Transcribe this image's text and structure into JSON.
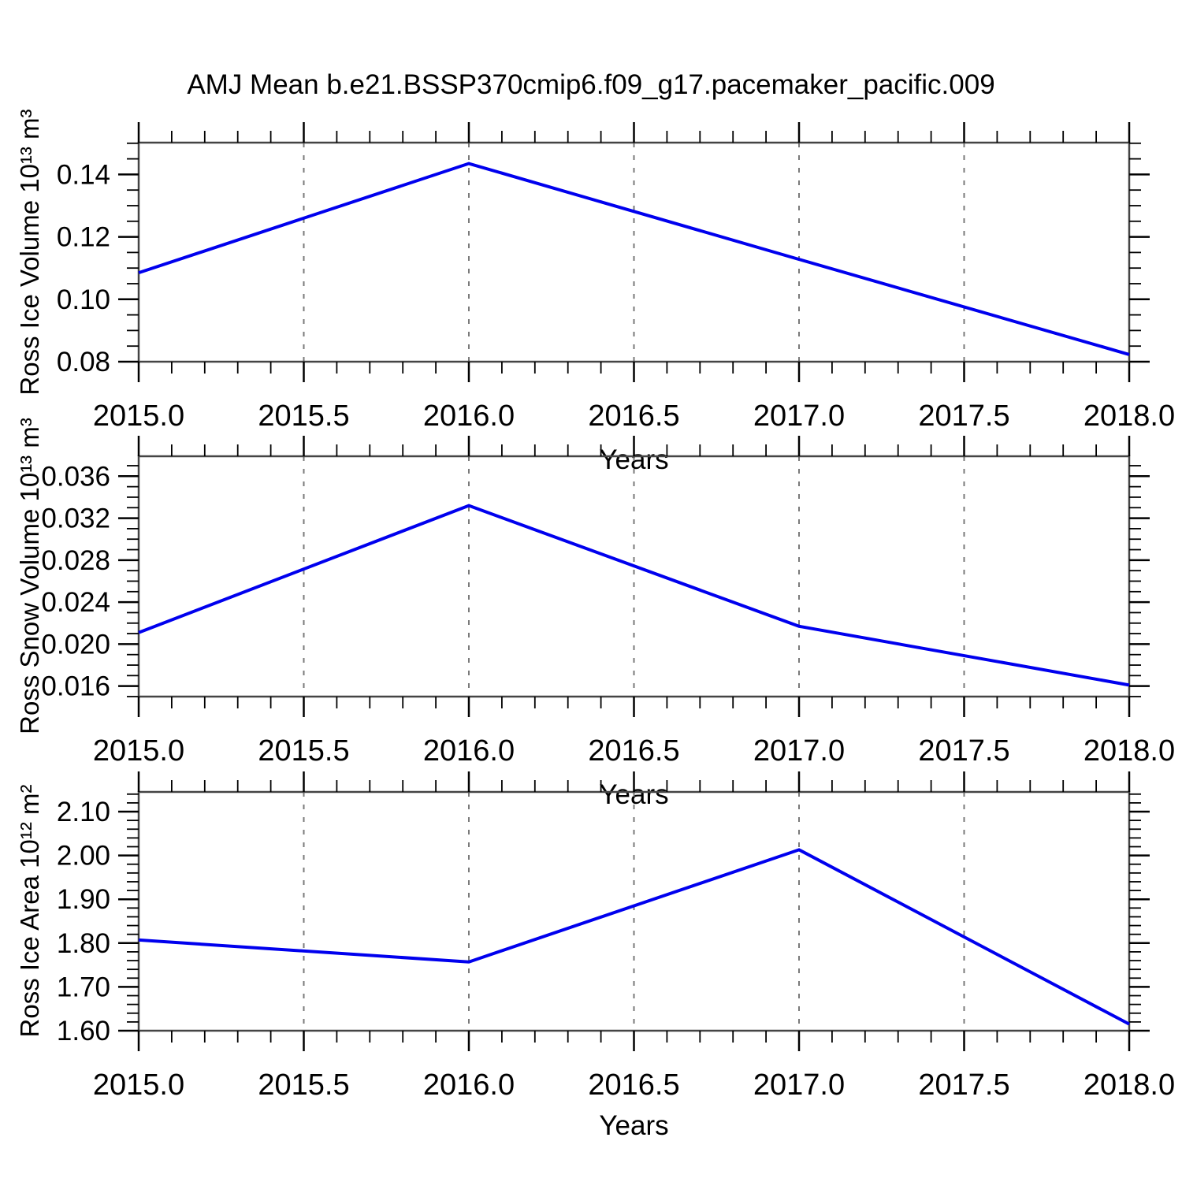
{
  "page": {
    "title": "AMJ Mean b.e21.BSSP370cmip6.f09_g17.pacemaker_pacific.009"
  },
  "colors": {
    "line": "#0000ee",
    "grid": "#7a7a7a",
    "frame": "#444444",
    "tick": "#000000",
    "text": "#000000"
  },
  "chart_data": [
    {
      "type": "line",
      "series_name": "Ross Ice Volume",
      "ylabel": "Ross Ice Volume 10¹³ m³",
      "xlabel": "Years",
      "x": [
        2015.0,
        2016.0,
        2017.0,
        2018.0
      ],
      "y": [
        0.1085,
        0.1435,
        0.1128,
        0.0823
      ],
      "xlim": [
        2015.0,
        2018.0
      ],
      "ylim": [
        0.08,
        0.1502
      ],
      "xticks": [
        2015.0,
        2015.5,
        2016.0,
        2016.5,
        2017.0,
        2017.5,
        2018.0
      ],
      "xtick_labels": [
        "2015.0",
        "2015.5",
        "2016.0",
        "2016.5",
        "2017.0",
        "2017.5",
        "2018.0"
      ],
      "xminor_step": 0.1,
      "yticks": [
        0.08,
        0.1,
        0.12,
        0.14
      ],
      "ytick_labels": [
        "0.08",
        "0.10",
        "0.12",
        "0.14"
      ],
      "yminor_step": 0.005,
      "x_gridlines": [
        2015.5,
        2016.0,
        2016.5,
        2017.0,
        2017.5
      ],
      "grid": "vertical-dashed",
      "legend": "none"
    },
    {
      "type": "line",
      "series_name": "Ross Snow Volume",
      "ylabel": "Ross Snow Volume 10¹³ m³",
      "xlabel": "Years",
      "x": [
        2015.0,
        2016.0,
        2017.0,
        2018.0
      ],
      "y": [
        0.0211,
        0.0332,
        0.0217,
        0.0161
      ],
      "xlim": [
        2015.0,
        2018.0
      ],
      "ylim": [
        0.015,
        0.0379
      ],
      "xticks": [
        2015.0,
        2015.5,
        2016.0,
        2016.5,
        2017.0,
        2017.5,
        2018.0
      ],
      "xtick_labels": [
        "2015.0",
        "2015.5",
        "2016.0",
        "2016.5",
        "2017.0",
        "2017.5",
        "2018.0"
      ],
      "xminor_step": 0.1,
      "yticks": [
        0.016,
        0.02,
        0.024,
        0.028,
        0.032,
        0.036
      ],
      "ytick_labels": [
        "0.016",
        "0.020",
        "0.024",
        "0.028",
        "0.032",
        "0.036"
      ],
      "yminor_step": 0.001,
      "x_gridlines": [
        2015.5,
        2016.0,
        2016.5,
        2017.0,
        2017.5
      ],
      "grid": "vertical-dashed",
      "legend": "none"
    },
    {
      "type": "line",
      "series_name": "Ross Ice Area",
      "ylabel": "Ross Ice Area 10¹² m²",
      "xlabel": "Years",
      "x": [
        2015.0,
        2016.0,
        2017.0,
        2018.0
      ],
      "y": [
        1.807,
        1.757,
        2.013,
        1.615
      ],
      "xlim": [
        2015.0,
        2018.0
      ],
      "ylim": [
        1.6,
        2.145
      ],
      "xticks": [
        2015.0,
        2015.5,
        2016.0,
        2016.5,
        2017.0,
        2017.5,
        2018.0
      ],
      "xtick_labels": [
        "2015.0",
        "2015.5",
        "2016.0",
        "2016.5",
        "2017.0",
        "2017.5",
        "2018.0"
      ],
      "xminor_step": 0.1,
      "yticks": [
        1.6,
        1.7,
        1.8,
        1.9,
        2.0,
        2.1
      ],
      "ytick_labels": [
        "1.60",
        "1.70",
        "1.80",
        "1.90",
        "2.00",
        "2.10"
      ],
      "yminor_step": 0.02,
      "x_gridlines": [
        2015.5,
        2016.0,
        2016.5,
        2017.0,
        2017.5
      ],
      "grid": "vertical-dashed",
      "legend": "none"
    }
  ]
}
